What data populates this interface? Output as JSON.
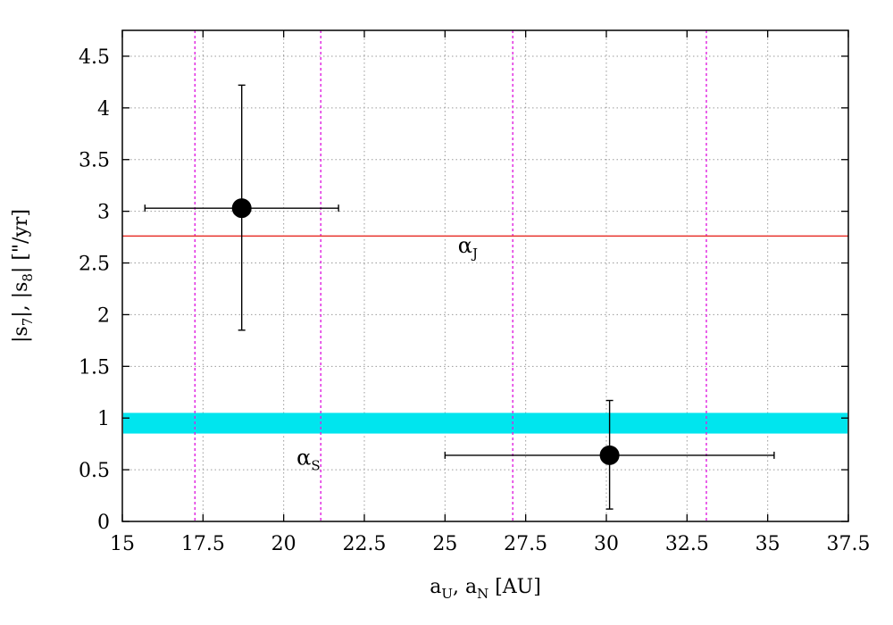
{
  "chart_data": {
    "type": "scatter",
    "title": "",
    "xlabel": {
      "parts": [
        {
          "t": "a"
        },
        {
          "t": "U",
          "sub": true
        },
        {
          "t": ", a"
        },
        {
          "t": "N",
          "sub": true
        },
        {
          "t": " [AU]"
        }
      ]
    },
    "ylabel": {
      "parts": [
        {
          "t": "|s"
        },
        {
          "t": "7",
          "sub": true
        },
        {
          "t": "|, |s"
        },
        {
          "t": "8",
          "sub": true
        },
        {
          "t": "| [\"/yr]"
        }
      ]
    },
    "xlim": [
      15,
      37.5
    ],
    "ylim": [
      0,
      4.75
    ],
    "xticks": [
      15,
      17.5,
      20,
      22.5,
      25,
      27.5,
      30,
      32.5,
      35,
      37.5
    ],
    "xtick_labels": [
      "15",
      "17.5",
      "20",
      "22.5",
      "25",
      "27.5",
      "30",
      "32.5",
      "35",
      "37.5"
    ],
    "yticks": [
      0,
      0.5,
      1,
      1.5,
      2,
      2.5,
      3,
      3.5,
      4,
      4.5
    ],
    "ytick_labels": [
      "0",
      "0.5",
      "1",
      "1.5",
      "2",
      "2.5",
      "3",
      "3.5",
      "4",
      "4.5"
    ],
    "grid": true,
    "points": [
      {
        "x": 18.7,
        "y": 3.03,
        "xerr": [
          15.7,
          21.7
        ],
        "yerr": [
          1.85,
          4.22
        ]
      },
      {
        "x": 30.1,
        "y": 0.64,
        "xerr": [
          25.0,
          35.2
        ],
        "yerr": [
          0.12,
          1.17
        ]
      }
    ],
    "hlines": [
      {
        "y": 2.76,
        "color": "#e8322b",
        "label_parts": [
          {
            "t": "α"
          },
          {
            "t": "J",
            "sub": true
          }
        ],
        "label_x": 25.4,
        "label_y": 2.6
      }
    ],
    "bands": [
      {
        "y0": 0.85,
        "y1": 1.05,
        "color": "#00e5ee",
        "label_parts": [
          {
            "t": "α"
          },
          {
            "t": "S",
            "sub": true
          }
        ],
        "label_x": 20.4,
        "label_y": 0.55
      }
    ],
    "vlines": [
      {
        "x": 17.25,
        "color": "#e020e0"
      },
      {
        "x": 21.15,
        "color": "#e020e0"
      },
      {
        "x": 27.1,
        "color": "#e020e0"
      },
      {
        "x": 33.1,
        "color": "#e020e0"
      }
    ],
    "marker_color": "#000000",
    "grid_color": "#9a9a9a"
  }
}
